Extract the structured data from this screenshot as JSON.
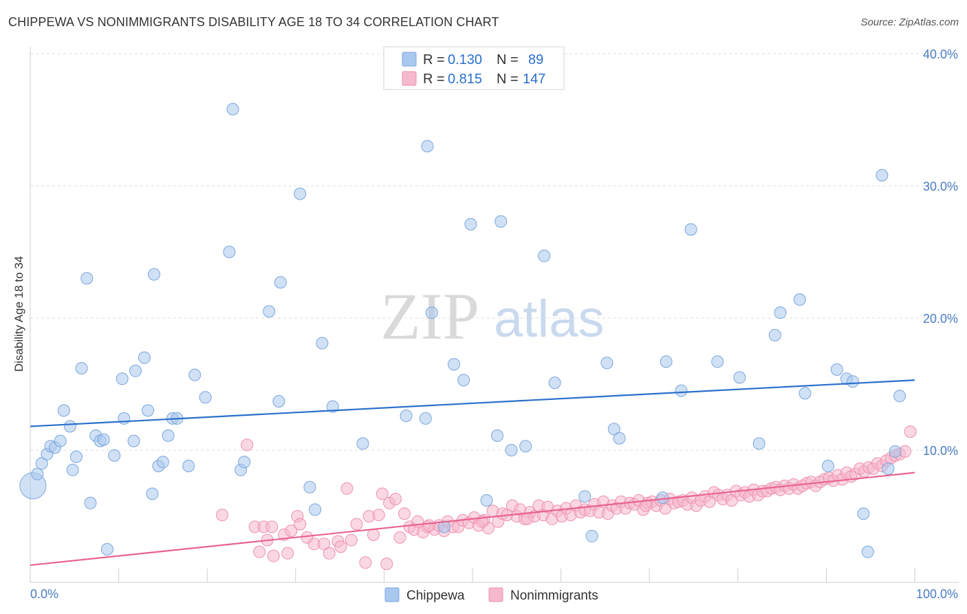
{
  "title": "CHIPPEWA VS NONIMMIGRANTS DISABILITY AGE 18 TO 34 CORRELATION CHART",
  "source": "Source: ZipAtlas.com",
  "watermark": {
    "zip": "ZIP",
    "atlas": "atlas"
  },
  "colors": {
    "chippewa_fill": "#a9c8ef",
    "chippewa_stroke": "#7aa5dc",
    "chippewa_line": "#2a6fcc",
    "nonimm_fill": "#f6b8cc",
    "nonimm_stroke": "#ee90ae",
    "nonimm_line": "#e8638f",
    "value_text": "#2a6fcc"
  },
  "legend": {
    "r_label": "R =",
    "n_label": "N =",
    "rows": [
      {
        "r": "0.130",
        "n": "89"
      },
      {
        "r": "0.815",
        "n": "147"
      }
    ]
  },
  "chart_data": {
    "type": "scatter",
    "title": "CHIPPEWA VS NONIMMIGRANTS DISABILITY AGE 18 TO 34 CORRELATION CHART",
    "xlabel": "",
    "ylabel": "Disability Age 18 to 34",
    "xlim": [
      0,
      100
    ],
    "ylim": [
      0,
      40
    ],
    "x_tick_labels": [
      "0.0%",
      "100.0%"
    ],
    "y_tick_labels": [
      "10.0%",
      "20.0%",
      "30.0%",
      "40.0%"
    ],
    "y_ticks": [
      10,
      20,
      30,
      40
    ],
    "grid": "horizontal dashed",
    "legend_position": "top-center",
    "series": [
      {
        "name": "Chippewa",
        "R": 0.13,
        "N": 89,
        "trend": {
          "x": [
            0,
            100
          ],
          "y": [
            11.8,
            15.3
          ]
        },
        "points": [
          [
            0.3,
            7.3
          ],
          [
            0.8,
            8.2
          ],
          [
            1.3,
            9.0
          ],
          [
            1.9,
            9.7
          ],
          [
            2.3,
            10.3
          ],
          [
            2.8,
            10.2
          ],
          [
            3.4,
            10.7
          ],
          [
            3.8,
            13.0
          ],
          [
            4.5,
            11.8
          ],
          [
            4.8,
            8.5
          ],
          [
            5.2,
            9.5
          ],
          [
            5.8,
            16.2
          ],
          [
            6.4,
            23.0
          ],
          [
            6.8,
            6.0
          ],
          [
            7.4,
            11.1
          ],
          [
            7.9,
            10.7
          ],
          [
            8.3,
            10.8
          ],
          [
            8.7,
            2.5
          ],
          [
            9.5,
            9.6
          ],
          [
            10.4,
            15.4
          ],
          [
            10.6,
            12.4
          ],
          [
            11.7,
            10.7
          ],
          [
            11.9,
            16.0
          ],
          [
            12.9,
            17.0
          ],
          [
            13.3,
            13.0
          ],
          [
            13.8,
            6.7
          ],
          [
            14.0,
            23.3
          ],
          [
            14.5,
            8.8
          ],
          [
            15.0,
            9.1
          ],
          [
            15.6,
            11.1
          ],
          [
            16.1,
            12.4
          ],
          [
            16.6,
            12.4
          ],
          [
            17.9,
            8.8
          ],
          [
            18.6,
            15.7
          ],
          [
            19.8,
            14.0
          ],
          [
            22.5,
            25.0
          ],
          [
            22.9,
            35.8
          ],
          [
            23.8,
            8.5
          ],
          [
            24.2,
            9.1
          ],
          [
            27.0,
            20.5
          ],
          [
            28.1,
            13.7
          ],
          [
            28.3,
            22.7
          ],
          [
            30.5,
            29.4
          ],
          [
            31.6,
            7.2
          ],
          [
            32.2,
            5.5
          ],
          [
            33.0,
            18.1
          ],
          [
            34.2,
            13.3
          ],
          [
            37.6,
            10.5
          ],
          [
            42.5,
            12.6
          ],
          [
            44.7,
            12.4
          ],
          [
            44.9,
            33.0
          ],
          [
            45.4,
            20.4
          ],
          [
            46.8,
            4.2
          ],
          [
            47.9,
            16.5
          ],
          [
            49.0,
            15.3
          ],
          [
            49.8,
            27.1
          ],
          [
            51.6,
            6.2
          ],
          [
            52.8,
            11.1
          ],
          [
            53.2,
            27.3
          ],
          [
            54.4,
            10.0
          ],
          [
            56.0,
            10.3
          ],
          [
            58.1,
            24.7
          ],
          [
            59.3,
            15.1
          ],
          [
            62.7,
            6.5
          ],
          [
            63.5,
            3.5
          ],
          [
            65.2,
            16.6
          ],
          [
            66.0,
            11.6
          ],
          [
            66.6,
            10.9
          ],
          [
            71.5,
            6.4
          ],
          [
            71.9,
            16.7
          ],
          [
            73.6,
            14.5
          ],
          [
            74.7,
            26.7
          ],
          [
            77.7,
            16.7
          ],
          [
            80.2,
            15.5
          ],
          [
            82.4,
            10.5
          ],
          [
            84.2,
            18.7
          ],
          [
            84.8,
            20.4
          ],
          [
            87.0,
            21.4
          ],
          [
            87.6,
            14.3
          ],
          [
            90.2,
            8.8
          ],
          [
            91.2,
            16.1
          ],
          [
            92.3,
            15.4
          ],
          [
            93.0,
            15.2
          ],
          [
            94.2,
            5.2
          ],
          [
            94.7,
            2.3
          ],
          [
            96.3,
            30.8
          ],
          [
            97.0,
            8.6
          ],
          [
            97.8,
            9.9
          ],
          [
            98.3,
            14.1
          ]
        ]
      },
      {
        "name": "Nonimmigrants",
        "R": 0.815,
        "N": 147,
        "trend": {
          "x": [
            0,
            100
          ],
          "y": [
            1.3,
            8.3
          ]
        },
        "points": [
          [
            21.7,
            5.1
          ],
          [
            24.5,
            10.4
          ],
          [
            25.4,
            4.2
          ],
          [
            25.9,
            2.3
          ],
          [
            26.4,
            4.2
          ],
          [
            26.8,
            3.2
          ],
          [
            27.3,
            4.2
          ],
          [
            27.5,
            2.0
          ],
          [
            28.7,
            3.6
          ],
          [
            29.1,
            2.2
          ],
          [
            29.5,
            3.9
          ],
          [
            30.2,
            5.0
          ],
          [
            30.5,
            4.4
          ],
          [
            31.3,
            3.4
          ],
          [
            32.1,
            2.9
          ],
          [
            33.2,
            2.9
          ],
          [
            33.8,
            2.2
          ],
          [
            34.8,
            3.1
          ],
          [
            35.1,
            2.7
          ],
          [
            35.8,
            7.1
          ],
          [
            36.3,
            3.2
          ],
          [
            36.9,
            4.4
          ],
          [
            37.9,
            1.5
          ],
          [
            38.3,
            5.0
          ],
          [
            38.8,
            3.6
          ],
          [
            39.4,
            5.1
          ],
          [
            39.8,
            6.7
          ],
          [
            40.3,
            1.4
          ],
          [
            40.6,
            6.0
          ],
          [
            41.3,
            6.3
          ],
          [
            41.8,
            3.4
          ],
          [
            42.3,
            5.2
          ],
          [
            42.9,
            4.2
          ],
          [
            43.4,
            4.0
          ],
          [
            43.8,
            4.6
          ],
          [
            44.4,
            3.8
          ],
          [
            44.9,
            4.2
          ],
          [
            45.7,
            4.0
          ],
          [
            46.2,
            4.3
          ],
          [
            46.8,
            3.9
          ],
          [
            47.2,
            4.6
          ],
          [
            47.8,
            4.2
          ],
          [
            48.4,
            4.2
          ],
          [
            48.9,
            4.7
          ],
          [
            49.6,
            4.5
          ],
          [
            50.2,
            4.9
          ],
          [
            50.7,
            4.3
          ],
          [
            51.3,
            4.7
          ],
          [
            51.8,
            4.1
          ],
          [
            52.3,
            5.4
          ],
          [
            52.9,
            4.6
          ],
          [
            53.4,
            5.2
          ],
          [
            53.9,
            5.1
          ],
          [
            54.5,
            5.8
          ],
          [
            55.0,
            5.0
          ],
          [
            55.4,
            5.5
          ],
          [
            55.9,
            4.8
          ],
          [
            56.5,
            5.3
          ],
          [
            57.0,
            5.0
          ],
          [
            57.5,
            5.8
          ],
          [
            58.0,
            5.1
          ],
          [
            58.5,
            5.7
          ],
          [
            59.0,
            4.8
          ],
          [
            59.6,
            5.4
          ],
          [
            60.1,
            5.0
          ],
          [
            60.6,
            5.6
          ],
          [
            61.1,
            5.1
          ],
          [
            61.7,
            5.8
          ],
          [
            62.2,
            5.3
          ],
          [
            62.7,
            5.5
          ],
          [
            63.3,
            5.4
          ],
          [
            63.8,
            5.9
          ],
          [
            64.3,
            5.3
          ],
          [
            64.8,
            6.1
          ],
          [
            65.3,
            5.2
          ],
          [
            65.8,
            5.8
          ],
          [
            66.3,
            5.6
          ],
          [
            66.8,
            6.1
          ],
          [
            67.3,
            5.6
          ],
          [
            67.8,
            6.0
          ],
          [
            68.3,
            5.9
          ],
          [
            68.8,
            6.2
          ],
          [
            69.3,
            5.5
          ],
          [
            69.8,
            6.0
          ],
          [
            70.3,
            6.1
          ],
          [
            70.8,
            5.8
          ],
          [
            71.3,
            6.2
          ],
          [
            71.8,
            5.6
          ],
          [
            72.3,
            6.3
          ],
          [
            72.8,
            6.0
          ],
          [
            73.3,
            6.1
          ],
          [
            73.8,
            6.2
          ],
          [
            74.3,
            5.9
          ],
          [
            74.8,
            6.4
          ],
          [
            75.3,
            5.8
          ],
          [
            75.8,
            6.2
          ],
          [
            76.3,
            6.5
          ],
          [
            76.8,
            6.1
          ],
          [
            77.3,
            6.8
          ],
          [
            77.8,
            6.6
          ],
          [
            78.3,
            6.3
          ],
          [
            78.8,
            6.6
          ],
          [
            79.3,
            6.2
          ],
          [
            79.8,
            6.9
          ],
          [
            80.3,
            6.6
          ],
          [
            80.8,
            6.8
          ],
          [
            81.3,
            6.5
          ],
          [
            81.8,
            7.0
          ],
          [
            82.3,
            6.6
          ],
          [
            82.8,
            6.9
          ],
          [
            83.3,
            6.9
          ],
          [
            83.8,
            7.1
          ],
          [
            84.3,
            7.2
          ],
          [
            84.8,
            7.0
          ],
          [
            85.3,
            7.3
          ],
          [
            85.8,
            7.1
          ],
          [
            86.3,
            7.4
          ],
          [
            86.8,
            7.1
          ],
          [
            87.3,
            7.3
          ],
          [
            87.8,
            7.5
          ],
          [
            88.3,
            7.6
          ],
          [
            88.8,
            7.3
          ],
          [
            89.3,
            7.6
          ],
          [
            89.8,
            7.8
          ],
          [
            90.3,
            7.9
          ],
          [
            90.8,
            7.7
          ],
          [
            91.3,
            8.1
          ],
          [
            91.8,
            7.8
          ],
          [
            92.3,
            8.3
          ],
          [
            92.8,
            8.0
          ],
          [
            93.3,
            8.2
          ],
          [
            93.8,
            8.6
          ],
          [
            94.3,
            8.4
          ],
          [
            94.8,
            8.7
          ],
          [
            95.3,
            8.6
          ],
          [
            95.8,
            9.0
          ],
          [
            96.3,
            8.8
          ],
          [
            96.8,
            9.2
          ],
          [
            97.3,
            9.4
          ],
          [
            97.8,
            9.6
          ],
          [
            98.3,
            9.7
          ],
          [
            98.9,
            9.9
          ],
          [
            99.5,
            11.4
          ],
          [
            45.1,
            4.3
          ],
          [
            51.1,
            4.6
          ],
          [
            56.2,
            4.8
          ],
          [
            69.6,
            5.8
          ]
        ]
      }
    ]
  },
  "bottom_legend": [
    "Chippewa",
    "Nonimmigrants"
  ]
}
